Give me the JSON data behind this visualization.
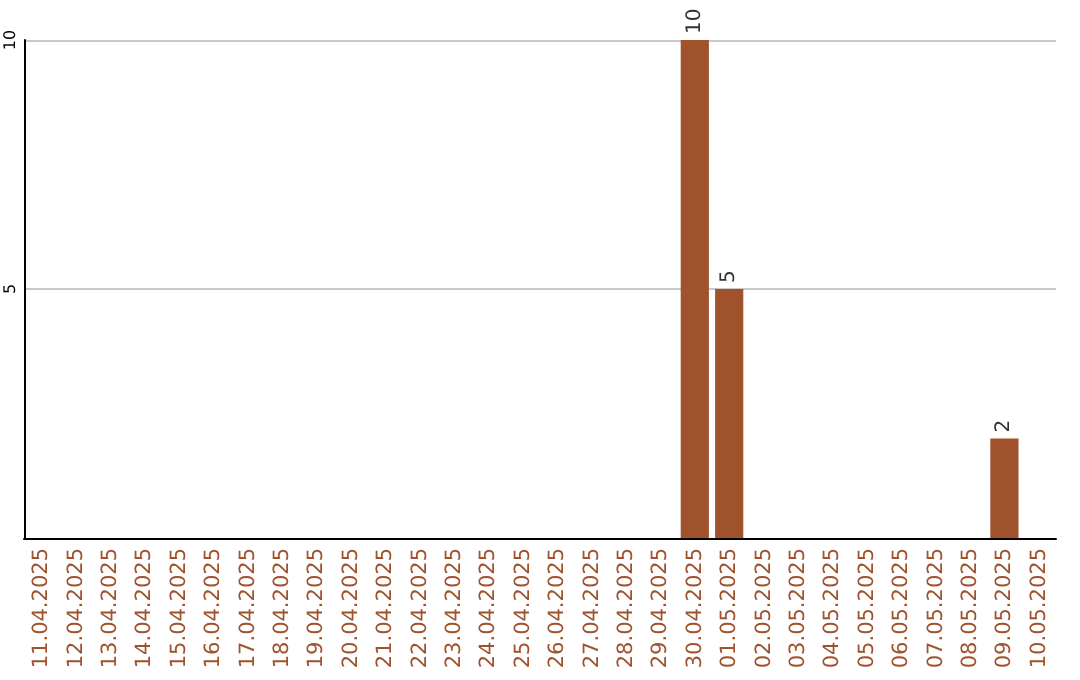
{
  "chart_data": {
    "type": "bar",
    "categories": [
      "11.04.2025",
      "12.04.2025",
      "13.04.2025",
      "14.04.2025",
      "15.04.2025",
      "16.04.2025",
      "17.04.2025",
      "18.04.2025",
      "19.04.2025",
      "20.04.2025",
      "21.04.2025",
      "22.04.2025",
      "23.04.2025",
      "24.04.2025",
      "25.04.2025",
      "26.04.2025",
      "27.04.2025",
      "28.04.2025",
      "29.04.2025",
      "30.04.2025",
      "01.05.2025",
      "02.05.2025",
      "03.05.2025",
      "04.05.2025",
      "05.05.2025",
      "06.05.2025",
      "07.05.2025",
      "08.05.2025",
      "09.05.2025",
      "10.05.2025"
    ],
    "values": [
      0,
      0,
      0,
      0,
      0,
      0,
      0,
      0,
      0,
      0,
      0,
      0,
      0,
      0,
      0,
      0,
      0,
      0,
      0,
      10,
      5,
      0,
      0,
      0,
      0,
      0,
      0,
      0,
      2,
      0
    ],
    "value_labels": [
      null,
      null,
      null,
      null,
      null,
      null,
      null,
      null,
      null,
      null,
      null,
      null,
      null,
      null,
      null,
      null,
      null,
      null,
      null,
      "10",
      "5",
      null,
      null,
      null,
      null,
      null,
      null,
      null,
      "2",
      null
    ],
    "color": "#a0522d",
    "ylim": [
      0,
      10
    ],
    "yticks": [
      5,
      10
    ],
    "grid": "y"
  }
}
